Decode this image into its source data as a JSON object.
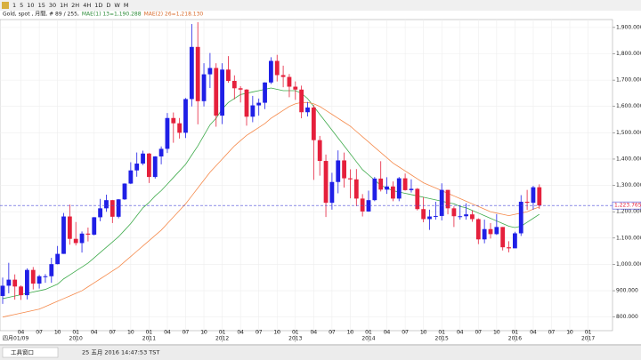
{
  "toolbar": {
    "buttons": [
      "1",
      "5",
      "10",
      "15",
      "30",
      "1H",
      "2H",
      "4H",
      "1D",
      "D",
      "W",
      "M"
    ]
  },
  "header": {
    "symbol": "Gold, spot , 月間, # 89 / 255,",
    "ma1": "MAE(1) 13=1,190.288",
    "ma2": "MAE(2) 26=1,218.130"
  },
  "status": {
    "tab": "工具窗口",
    "time": "25 五月 2016 14:47:53 TST"
  },
  "chart_data": {
    "type": "candlestick",
    "categories": [
      "2009-01",
      "2009-02",
      "2009-03",
      "2009-04",
      "2009-05",
      "2009-06",
      "2009-07",
      "2009-08",
      "2009-09",
      "2009-10",
      "2009-11",
      "2009-12",
      "2010-01",
      "2010-02",
      "2010-03",
      "2010-04",
      "2010-05",
      "2010-06",
      "2010-07",
      "2010-08",
      "2010-09",
      "2010-10",
      "2010-11",
      "2010-12",
      "2011-01",
      "2011-02",
      "2011-03",
      "2011-04",
      "2011-05",
      "2011-06",
      "2011-07",
      "2011-08",
      "2011-09",
      "2011-10",
      "2011-11",
      "2011-12",
      "2012-01",
      "2012-02",
      "2012-03",
      "2012-04",
      "2012-05",
      "2012-06",
      "2012-07",
      "2012-08",
      "2012-09",
      "2012-10",
      "2012-11",
      "2012-12",
      "2013-01",
      "2013-02",
      "2013-03",
      "2013-04",
      "2013-05",
      "2013-06",
      "2013-07",
      "2013-08",
      "2013-09",
      "2013-10",
      "2013-11",
      "2013-12",
      "2014-01",
      "2014-02",
      "2014-03",
      "2014-04",
      "2014-05",
      "2014-06",
      "2014-07",
      "2014-08",
      "2014-09",
      "2014-10",
      "2014-11",
      "2014-12",
      "2015-01",
      "2015-02",
      "2015-03",
      "2015-04",
      "2015-05",
      "2015-06",
      "2015-07",
      "2015-08",
      "2015-09",
      "2015-10",
      "2015-11",
      "2015-12",
      "2016-01",
      "2016-02",
      "2016-03",
      "2016-04",
      "2016-05"
    ],
    "open": [
      880,
      919,
      942,
      916,
      883,
      979,
      927,
      955,
      955,
      1001,
      1040,
      1182,
      1097,
      1081,
      1117,
      1113,
      1179,
      1213,
      1244,
      1181,
      1247,
      1307,
      1357,
      1383,
      1421,
      1332,
      1410,
      1439,
      1556,
      1536,
      1500,
      1628,
      1826,
      1620,
      1722,
      1746,
      1565,
      1740,
      1697,
      1669,
      1664,
      1561,
      1604,
      1614,
      1691,
      1773,
      1719,
      1712,
      1675,
      1664,
      1578,
      1596,
      1472,
      1393,
      1234,
      1313,
      1395,
      1327,
      1323,
      1250,
      1201,
      1244,
      1326,
      1284,
      1296,
      1250,
      1327,
      1282,
      1287,
      1210,
      1172,
      1182,
      1184,
      1283,
      1213,
      1183,
      1183,
      1190,
      1172,
      1095,
      1134,
      1115,
      1142,
      1065,
      1061,
      1118,
      1238,
      1234,
      1293
    ],
    "high": [
      950,
      1006,
      962,
      920,
      985,
      990,
      960,
      963,
      1025,
      1070,
      1195,
      1227,
      1161,
      1125,
      1140,
      1180,
      1249,
      1265,
      1245,
      1248,
      1308,
      1388,
      1425,
      1432,
      1423,
      1411,
      1448,
      1575,
      1577,
      1556,
      1632,
      1913,
      1920,
      1764,
      1803,
      1764,
      1764,
      1791,
      1718,
      1677,
      1666,
      1640,
      1630,
      1692,
      1787,
      1796,
      1755,
      1723,
      1695,
      1679,
      1617,
      1605,
      1488,
      1417,
      1348,
      1433,
      1425,
      1361,
      1362,
      1267,
      1280,
      1332,
      1392,
      1331,
      1315,
      1332,
      1345,
      1323,
      1290,
      1255,
      1208,
      1238,
      1308,
      1283,
      1220,
      1224,
      1232,
      1205,
      1175,
      1170,
      1157,
      1191,
      1142,
      1088,
      1124,
      1263,
      1283,
      1298,
      1304
    ],
    "low": [
      850,
      890,
      866,
      865,
      867,
      905,
      908,
      930,
      930,
      1000,
      1040,
      1075,
      1072,
      1045,
      1087,
      1110,
      1164,
      1200,
      1157,
      1175,
      1245,
      1305,
      1333,
      1377,
      1309,
      1326,
      1380,
      1423,
      1462,
      1478,
      1480,
      1600,
      1532,
      1600,
      1670,
      1523,
      1533,
      1690,
      1627,
      1615,
      1527,
      1540,
      1565,
      1590,
      1685,
      1695,
      1673,
      1635,
      1625,
      1555,
      1562,
      1321,
      1337,
      1180,
      1208,
      1270,
      1292,
      1251,
      1221,
      1182,
      1200,
      1240,
      1277,
      1268,
      1240,
      1240,
      1280,
      1273,
      1205,
      1160,
      1131,
      1170,
      1167,
      1190,
      1142,
      1170,
      1170,
      1162,
      1077,
      1080,
      1098,
      1112,
      1053,
      1046,
      1062,
      1108,
      1207,
      1208,
      1211
    ],
    "close": [
      919,
      942,
      916,
      883,
      979,
      927,
      955,
      955,
      1001,
      1040,
      1182,
      1097,
      1081,
      1117,
      1113,
      1179,
      1213,
      1244,
      1181,
      1247,
      1307,
      1357,
      1383,
      1421,
      1332,
      1410,
      1439,
      1556,
      1536,
      1500,
      1628,
      1826,
      1620,
      1722,
      1746,
      1565,
      1740,
      1697,
      1669,
      1664,
      1561,
      1604,
      1614,
      1691,
      1773,
      1719,
      1712,
      1675,
      1664,
      1578,
      1596,
      1472,
      1393,
      1234,
      1313,
      1395,
      1327,
      1323,
      1250,
      1201,
      1244,
      1326,
      1284,
      1296,
      1250,
      1327,
      1282,
      1287,
      1210,
      1172,
      1182,
      1184,
      1283,
      1213,
      1183,
      1183,
      1190,
      1172,
      1095,
      1134,
      1115,
      1142,
      1065,
      1061,
      1118,
      1238,
      1234,
      1293,
      1223.765
    ],
    "last_label": "1,223.765",
    "up_color": "#1f1fe6",
    "down_color": "#e5203c",
    "series": [
      {
        "name": "MAE(1)",
        "color": "#3daa4a",
        "values": [
          870,
          875,
          880,
          885,
          890,
          895,
          900,
          905,
          915,
          925,
          945,
          960,
          975,
          990,
          1005,
          1025,
          1045,
          1065,
          1085,
          1105,
          1130,
          1155,
          1185,
          1215,
          1235,
          1260,
          1280,
          1305,
          1330,
          1355,
          1380,
          1415,
          1450,
          1490,
          1530,
          1555,
          1590,
          1615,
          1630,
          1645,
          1650,
          1655,
          1660,
          1665,
          1670,
          1665,
          1660,
          1660,
          1660,
          1650,
          1630,
          1600,
          1570,
          1540,
          1510,
          1480,
          1450,
          1420,
          1390,
          1360,
          1340,
          1320,
          1300,
          1290,
          1280,
          1275,
          1270,
          1265,
          1260,
          1255,
          1250,
          1245,
          1240,
          1235,
          1230,
          1220,
          1215,
          1205,
          1195,
          1185,
          1175,
          1165,
          1155,
          1145,
          1140,
          1145,
          1160,
          1175,
          1190.288
        ]
      },
      {
        "name": "MAE(2)",
        "color": "#f5894a",
        "values": [
          800,
          805,
          810,
          815,
          820,
          825,
          830,
          840,
          850,
          860,
          870,
          880,
          890,
          900,
          915,
          930,
          945,
          960,
          975,
          990,
          1010,
          1030,
          1050,
          1070,
          1090,
          1110,
          1130,
          1155,
          1180,
          1205,
          1230,
          1260,
          1290,
          1320,
          1350,
          1375,
          1400,
          1425,
          1450,
          1470,
          1490,
          1505,
          1520,
          1535,
          1555,
          1570,
          1585,
          1600,
          1610,
          1615,
          1615,
          1610,
          1600,
          1585,
          1570,
          1555,
          1540,
          1525,
          1505,
          1485,
          1465,
          1445,
          1425,
          1405,
          1385,
          1370,
          1355,
          1340,
          1325,
          1310,
          1300,
          1290,
          1280,
          1270,
          1260,
          1250,
          1240,
          1230,
          1220,
          1210,
          1200,
          1195,
          1190,
          1185,
          1190,
          1195,
          1200,
          1210,
          1218.13
        ]
      }
    ],
    "ylim": [
      755,
      1930
    ],
    "yticks": [
      {
        "value": 800,
        "label": "800.000"
      },
      {
        "value": 900,
        "label": "900.000"
      },
      {
        "value": 1000,
        "label": "1,000.000"
      },
      {
        "value": 1100,
        "label": "1,100.000"
      },
      {
        "value": 1200,
        "label": "1,200.000"
      },
      {
        "value": 1300,
        "label": "1,300.000"
      },
      {
        "value": 1400,
        "label": "1,400.000"
      },
      {
        "value": 1500,
        "label": "1,500.000"
      },
      {
        "value": 1600,
        "label": "1,600.000"
      },
      {
        "value": 1700,
        "label": "1,700.000"
      },
      {
        "value": 1800,
        "label": "1,800.000"
      },
      {
        "value": 1900,
        "label": "1,900.000"
      }
    ],
    "xticks": [
      {
        "value": "2009-04",
        "label": "04"
      },
      {
        "value": "2009-07",
        "label": "07"
      },
      {
        "value": "2009-10",
        "label": "10"
      },
      {
        "value": "2010-01",
        "label": "01"
      },
      {
        "value": "2010-04",
        "label": "04"
      },
      {
        "value": "2010-07",
        "label": "07"
      },
      {
        "value": "2010-10",
        "label": "10"
      },
      {
        "value": "2011-01",
        "label": "01"
      },
      {
        "value": "2011-04",
        "label": "04"
      },
      {
        "value": "2011-07",
        "label": "07"
      },
      {
        "value": "2011-10",
        "label": "10"
      },
      {
        "value": "2012-01",
        "label": "01"
      },
      {
        "value": "2012-04",
        "label": "04"
      },
      {
        "value": "2012-07",
        "label": "07"
      },
      {
        "value": "2012-10",
        "label": "10"
      },
      {
        "value": "2013-01",
        "label": "01"
      },
      {
        "value": "2013-04",
        "label": "04"
      },
      {
        "value": "2013-07",
        "label": "07"
      },
      {
        "value": "2013-10",
        "label": "10"
      },
      {
        "value": "2014-01",
        "label": "01"
      },
      {
        "value": "2014-04",
        "label": "04"
      },
      {
        "value": "2014-07",
        "label": "07"
      },
      {
        "value": "2014-10",
        "label": "10"
      },
      {
        "value": "2015-01",
        "label": "01"
      },
      {
        "value": "2015-04",
        "label": "04"
      },
      {
        "value": "2015-07",
        "label": "07"
      },
      {
        "value": "2015-10",
        "label": "10"
      },
      {
        "value": "2016-01",
        "label": "01"
      },
      {
        "value": "2016-04",
        "label": "04"
      },
      {
        "value": "2016-07",
        "label": "07"
      },
      {
        "value": "2016-10",
        "label": "10"
      },
      {
        "value": "2017-01",
        "label": "01"
      }
    ],
    "year_ticks": [
      {
        "value": "2010-01",
        "label": "2010"
      },
      {
        "value": "2011-01",
        "label": "2011"
      },
      {
        "value": "2012-01",
        "label": "2012"
      },
      {
        "value": "2013-01",
        "label": "2013"
      },
      {
        "value": "2014-01",
        "label": "2014"
      },
      {
        "value": "2015-01",
        "label": "2015"
      },
      {
        "value": "2016-01",
        "label": "2016"
      },
      {
        "value": "2017-01",
        "label": "2017"
      }
    ],
    "axis_corner_label": "四月01/09",
    "grid": true
  }
}
